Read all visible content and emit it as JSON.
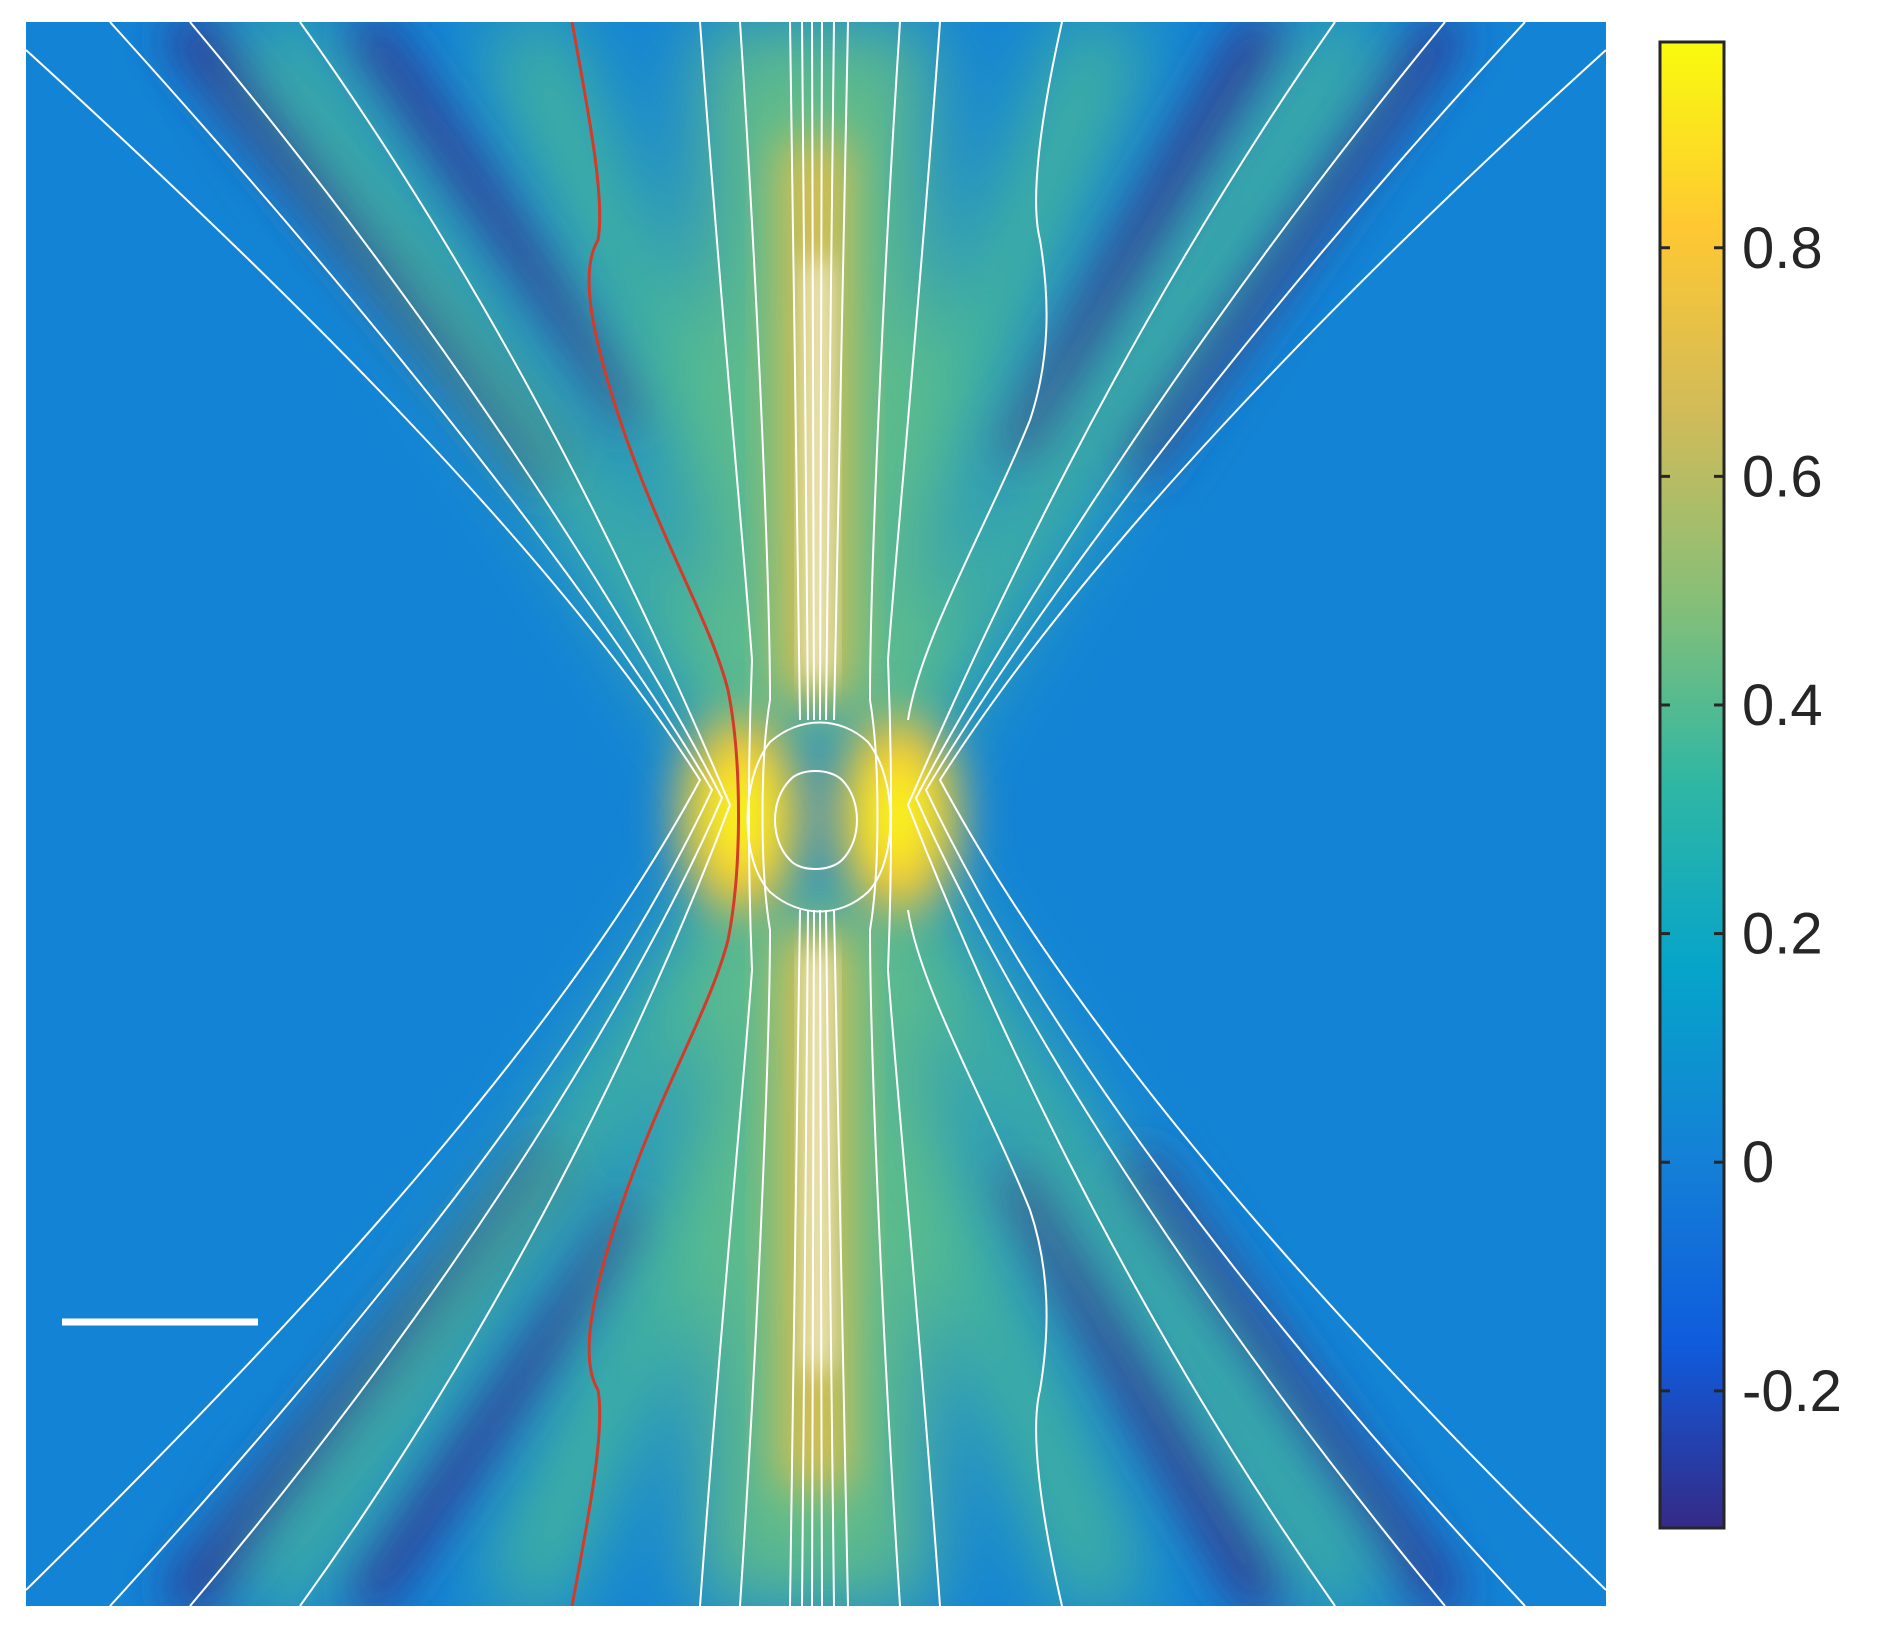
{
  "chart_data": {
    "type": "heatmap",
    "title": "",
    "xlabel": "",
    "ylabel": "",
    "grid": false,
    "legend": "none",
    "colormap": "parula",
    "colormap_stops": [
      "#352a87",
      "#0f5cdd",
      "#1481d6",
      "#06a4ca",
      "#2eb7a4",
      "#87bf77",
      "#d1bb59",
      "#fec832",
      "#f9fb0e"
    ],
    "color_range": [
      -0.32,
      0.98
    ],
    "colorbar": {
      "placement": "right",
      "ticks": [
        {
          "value": 0.8,
          "label": "0.8"
        },
        {
          "value": 0.6,
          "label": "0.6"
        },
        {
          "value": 0.4,
          "label": "0.4"
        },
        {
          "value": 0.2,
          "label": "0.2"
        },
        {
          "value": 0,
          "label": "0"
        },
        {
          "value": -0.2,
          "label": "-0.2"
        }
      ]
    },
    "features": {
      "background_value": 0.0,
      "hotspots": [
        {
          "side": "left",
          "value": 0.98
        },
        {
          "side": "right",
          "value": 0.98
        }
      ],
      "central_columns_value": 0.9,
      "dark_bands_value": -0.3
    },
    "streamline_color": "#ffffff",
    "highlight_line_color": "#d43a2a",
    "scale_bar_color": "#ffffff"
  }
}
